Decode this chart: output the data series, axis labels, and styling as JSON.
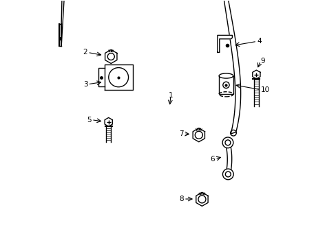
{
  "background_color": "#ffffff",
  "line_color": "#000000",
  "label_color": "#000000",
  "title": ""
}
